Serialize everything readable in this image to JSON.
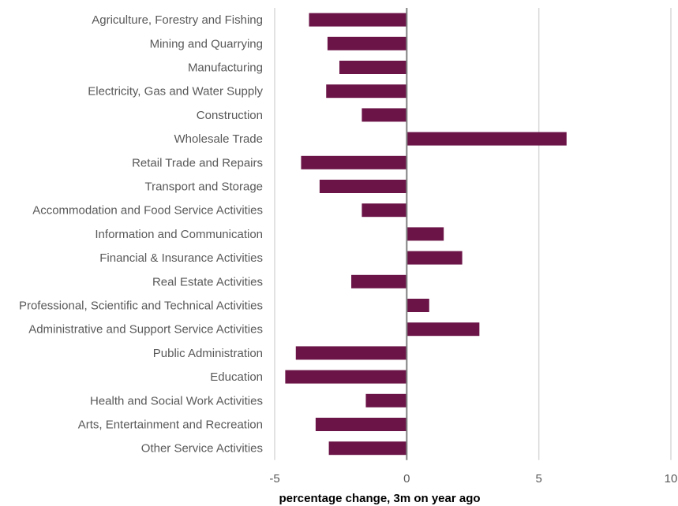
{
  "chart_data": {
    "type": "bar",
    "orientation": "horizontal",
    "categories": [
      "Agriculture, Forestry and Fishing",
      "Mining and Quarrying",
      "Manufacturing",
      "Electricity, Gas and Water Supply",
      "Construction",
      "Wholesale Trade",
      "Retail Trade and Repairs",
      "Transport and Storage",
      "Accommodation and Food Service Activities",
      "Information and Communication",
      "Financial & Insurance Activities",
      "Real Estate Activities",
      "Professional, Scientific and Technical Activities",
      "Administrative and Support Service Activities",
      "Public Administration",
      "Education",
      "Health and Social Work Activities",
      "Arts, Entertainment and Recreation",
      "Other Service Activities"
    ],
    "values": [
      -3.7,
      -3.0,
      -2.55,
      -3.05,
      -1.7,
      6.05,
      -4.0,
      -3.3,
      -1.7,
      1.4,
      2.1,
      -2.1,
      0.85,
      2.75,
      -4.2,
      -4.6,
      -1.55,
      -3.45,
      -2.95
    ],
    "xlabel": "percentage change, 3m on year ago",
    "ylabel": "",
    "title": "",
    "xlim": [
      -5,
      10
    ],
    "xticks": [
      -5,
      0,
      5,
      10
    ],
    "xtick_labels": [
      "-5",
      "0",
      "5",
      "10"
    ],
    "grid": "vertical",
    "bar_color": "#6b1447"
  }
}
